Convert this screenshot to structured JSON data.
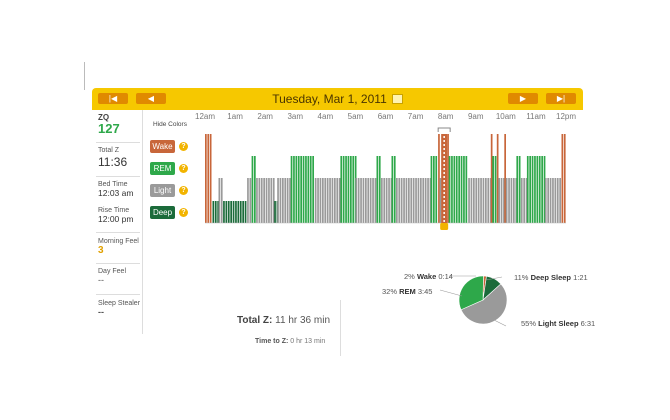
{
  "header": {
    "date": "Tuesday, Mar 1, 2011",
    "nav": {
      "first": "|◀",
      "prev": "◀",
      "next": "▶",
      "last": "▶|"
    },
    "bar_color": "#f6c800"
  },
  "sidebar": {
    "zq_label": "ZQ",
    "zq_value": "127",
    "total_z_label": "Total Z",
    "total_z_value": "11:36",
    "bed_time_label": "Bed Time",
    "bed_time_value": "12:03 am",
    "rise_time_label": "Rise Time",
    "rise_time_value": "12:00 pm",
    "morning_feel_label": "Morning Feel",
    "morning_feel_value": "3",
    "day_feel_label": "Day Feel",
    "day_feel_value": "--",
    "sleep_stealer_label": "Sleep Stealer",
    "sleep_stealer_value": "--"
  },
  "legend": {
    "hide_colors": "Hide Colors",
    "items": [
      {
        "label": "Wake",
        "color": "#c8663a"
      },
      {
        "label": "REM",
        "color": "#2ea84a"
      },
      {
        "label": "Light",
        "color": "#9a9a9a"
      },
      {
        "label": "Deep",
        "color": "#1b6b3a"
      }
    ],
    "help": "?"
  },
  "chart_data": {
    "type": "bar",
    "x_ticks": [
      "12am",
      "1am",
      "2am",
      "3am",
      "4am",
      "5am",
      "6am",
      "7am",
      "8am",
      "9am",
      "10am",
      "11am",
      "12pm"
    ],
    "stages": [
      "Wake",
      "REM",
      "Light",
      "Deep"
    ],
    "hypnogram": [
      [
        "Wake",
        0.0,
        0.25
      ],
      [
        "Deep",
        0.25,
        0.45
      ],
      [
        "Light",
        0.45,
        0.6
      ],
      [
        "Deep",
        0.6,
        1.4
      ],
      [
        "Light",
        1.4,
        1.55
      ],
      [
        "REM",
        1.55,
        1.7
      ],
      [
        "Light",
        1.7,
        2.3
      ],
      [
        "Deep",
        2.3,
        2.4
      ],
      [
        "Light",
        2.4,
        2.85
      ],
      [
        "REM",
        2.85,
        3.65
      ],
      [
        "Light",
        3.65,
        4.5
      ],
      [
        "REM",
        4.5,
        5.0
      ],
      [
        "Light",
        5.0,
        5.7
      ],
      [
        "REM",
        5.7,
        5.85
      ],
      [
        "Light",
        5.85,
        6.2
      ],
      [
        "REM",
        6.2,
        6.35
      ],
      [
        "Light",
        6.35,
        7.5
      ],
      [
        "REM",
        7.5,
        7.75
      ],
      [
        "Wake",
        7.75,
        7.8
      ],
      [
        "Light",
        7.8,
        8.05
      ],
      [
        "Wake",
        8.05,
        8.1
      ],
      [
        "REM",
        8.1,
        8.75
      ],
      [
        "Light",
        8.75,
        9.5
      ],
      [
        "Wake",
        9.5,
        9.55
      ],
      [
        "REM",
        9.55,
        9.7
      ],
      [
        "Wake",
        9.7,
        9.75
      ],
      [
        "Light",
        9.75,
        9.95
      ],
      [
        "Wake",
        9.95,
        10.0
      ],
      [
        "Light",
        10.0,
        10.35
      ],
      [
        "REM",
        10.35,
        10.5
      ],
      [
        "Light",
        10.5,
        10.7
      ],
      [
        "REM",
        10.7,
        11.3
      ],
      [
        "Light",
        11.3,
        11.85
      ],
      [
        "Wake",
        11.85,
        12.0
      ]
    ],
    "marker_hour": 7.95,
    "total_z_label": "Total Z:",
    "total_z_value": "11 hr 36 min",
    "time_to_z_label": "Time to Z:",
    "time_to_z_value": "0 hr 13 min",
    "pie": [
      {
        "name": "Wake",
        "percent": 2,
        "duration": "0:14",
        "color": "#c8663a"
      },
      {
        "name": "Deep Sleep",
        "percent": 11,
        "duration": "1:21",
        "color": "#1b6b3a"
      },
      {
        "name": "Light Sleep",
        "percent": 55,
        "duration": "6:31",
        "color": "#9a9a9a"
      },
      {
        "name": "REM",
        "percent": 32,
        "duration": "3:45",
        "color": "#2ea84a"
      }
    ]
  }
}
